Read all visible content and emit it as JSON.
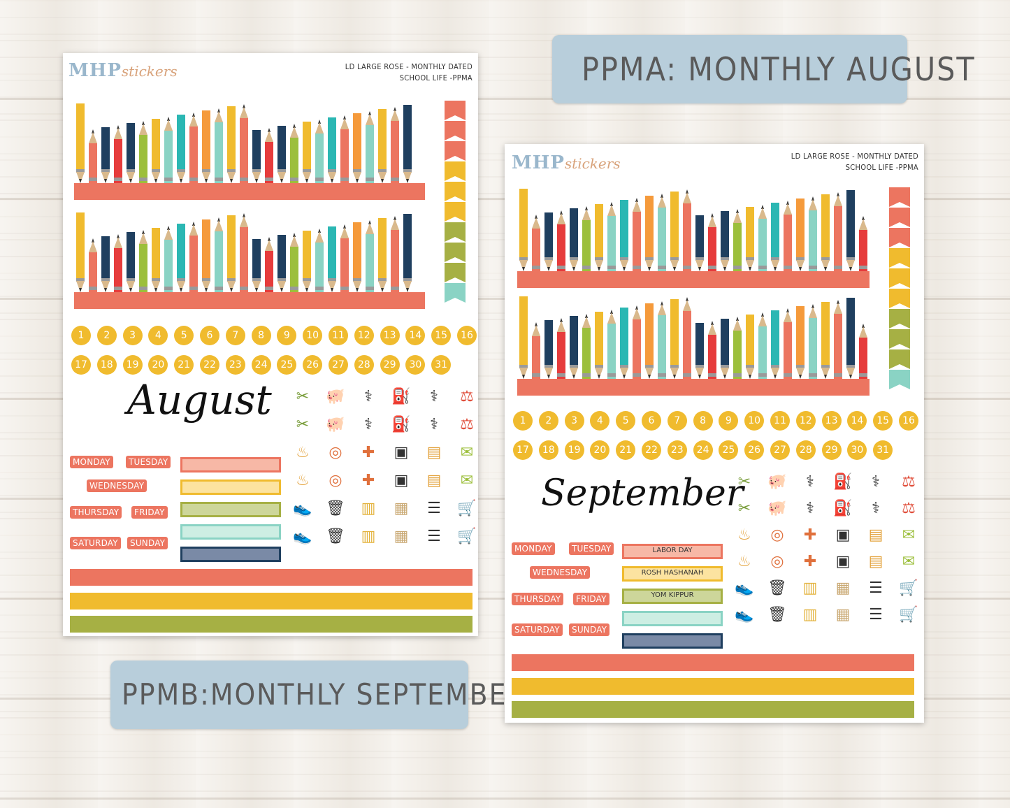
{
  "tags": {
    "august": "PPMA: MONTHLY AUGUST",
    "september": "PPMB:MONTHLY SEPTEMBER"
  },
  "sheet_left": {
    "logo_main": "MHP",
    "logo_script": "stickers",
    "header_line1": "LD LARGE ROSE - MONTHLY DATED",
    "header_line2": "SCHOOL LIFE -PPMA",
    "month": "August",
    "days": [
      "MONDAY",
      "TUESDAY",
      "WEDNESDAY",
      "THURSDAY",
      "FRIDAY",
      "SATURDAY",
      "SUNDAY"
    ],
    "boxes": [
      "",
      "",
      "",
      "",
      ""
    ]
  },
  "sheet_right": {
    "logo_main": "MHP",
    "logo_script": "stickers",
    "header_line1": "LD LARGE ROSE - MONTHLY DATED",
    "header_line2": "SCHOOL LIFE -PPMA",
    "month": "September",
    "days": [
      "MONDAY",
      "TUESDAY",
      "WEDNESDAY",
      "THURSDAY",
      "FRIDAY",
      "SATURDAY",
      "SUNDAY"
    ],
    "boxes": [
      "LABOR DAY",
      "ROSH HASHANAH",
      "YOM KIPPUR",
      "",
      ""
    ]
  },
  "numbers": [
    "1",
    "2",
    "3",
    "4",
    "5",
    "6",
    "7",
    "8",
    "9",
    "10",
    "11",
    "12",
    "13",
    "14",
    "15",
    "16",
    "17",
    "18",
    "19",
    "20",
    "21",
    "22",
    "23",
    "24",
    "25",
    "26",
    "27",
    "28",
    "29",
    "30",
    "31"
  ],
  "icons": [
    [
      "scissors-comb-icon",
      "piggy-bank-icon",
      "tooth-icon",
      "gas-pump-icon",
      "stethoscope-icon",
      "dumbbell-kettlebell-icon"
    ],
    [
      "scissors-comb-icon",
      "piggy-bank-icon",
      "tooth-icon",
      "gas-pump-icon",
      "stethoscope-icon",
      "dumbbell-kettlebell-icon"
    ],
    [
      "birthday-cake-icon",
      "washing-machine-icon",
      "medicine-icon",
      "scale-icon",
      "luggage-icon",
      "envelope-icon"
    ],
    [
      "birthday-cake-icon",
      "washing-machine-icon",
      "medicine-icon",
      "scale-icon",
      "luggage-icon",
      "envelope-icon"
    ],
    [
      "sneaker-icon",
      "trash-can-icon",
      "book-icon",
      "package-icon",
      "receipt-icon",
      "shopping-cart-icon"
    ],
    [
      "sneaker-icon",
      "trash-can-icon",
      "book-icon",
      "package-icon",
      "receipt-icon",
      "shopping-cart-icon"
    ]
  ],
  "colors": {
    "coral": "#ec7560",
    "yellow": "#f0bb2e",
    "olive": "#a6b044",
    "navy": "#1f3f5f",
    "mint": "#8ad3c4",
    "teal": "#2bb7b3",
    "orange": "#f59a3b",
    "red": "#e63c3c",
    "green": "#9cbf3c",
    "tag": "#b8cedb"
  }
}
